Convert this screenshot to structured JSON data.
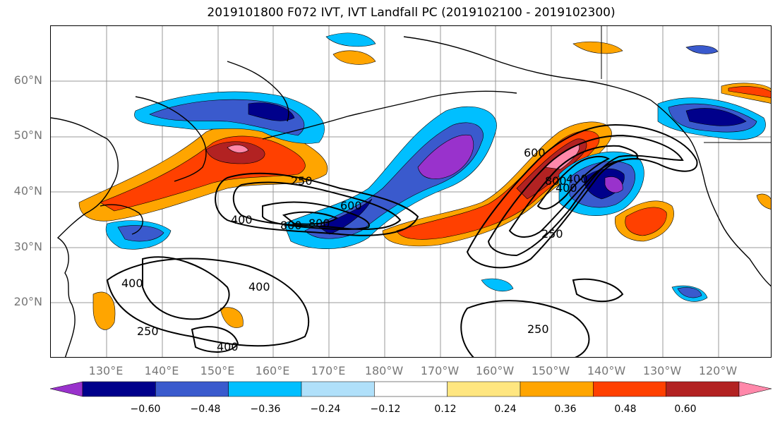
{
  "title": "2019101800 F072 IVT, IVT Landfall PC (2019102100 - 2019102300)",
  "lat_labels": [
    "60°N",
    "50°N",
    "40°N",
    "30°N",
    "20°N"
  ],
  "lon_labels": [
    "130°E",
    "140°E",
    "150°E",
    "160°E",
    "170°E",
    "180°W",
    "170°W",
    "160°W",
    "150°W",
    "140°W",
    "130°W",
    "120°W"
  ],
  "colorbar": {
    "colors": [
      "#9932cc",
      "#00008b",
      "#3a5acd",
      "#00bfff",
      "#b0e0fa",
      "#ffffff",
      "#ffe680",
      "#ffa500",
      "#ff4000",
      "#b22222",
      "#ff88aa"
    ],
    "tick_labels": [
      "−0.60",
      "−0.48",
      "−0.36",
      "−0.24",
      "−0.12",
      "0.12",
      "0.24",
      "0.36",
      "0.48",
      "0.60"
    ]
  },
  "contour_labels": [
    "250",
    "400",
    "600",
    "800",
    "800",
    "400",
    "600",
    "800",
    "400",
    "250",
    "400",
    "400",
    "250",
    "400",
    "250"
  ],
  "colors": {
    "coast": "#000000",
    "grid": "#999999",
    "contour": "#000000"
  }
}
